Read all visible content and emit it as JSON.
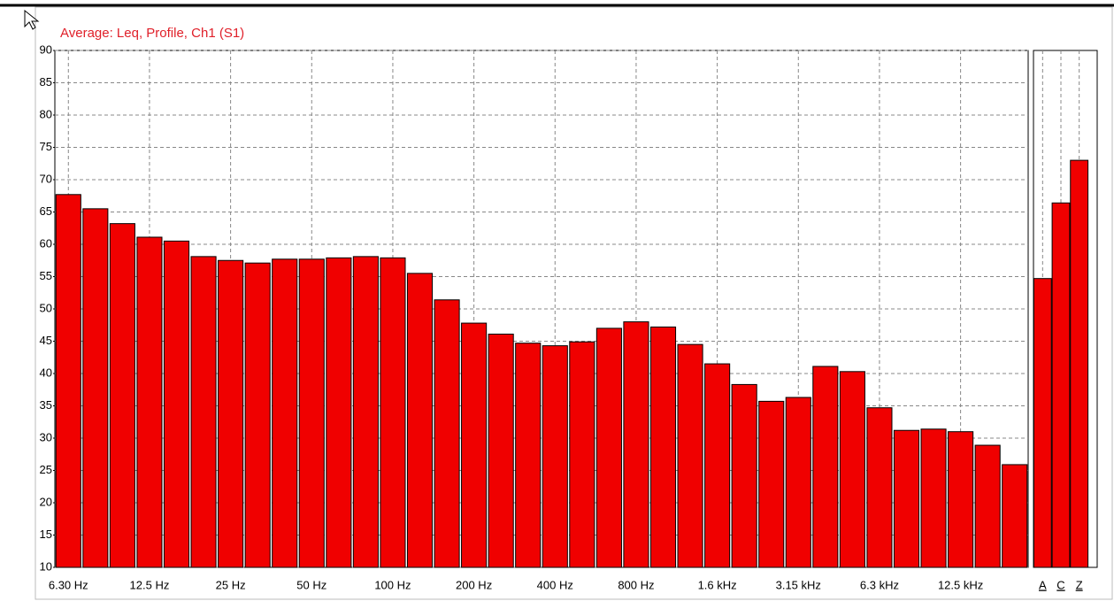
{
  "chart_data": [
    {
      "type": "bar",
      "title": "Average: Leq, Profile, Ch1 (S1)",
      "categories": [
        "6.30 Hz",
        null,
        null,
        "12.5 Hz",
        null,
        null,
        "25 Hz",
        null,
        null,
        "50 Hz",
        null,
        null,
        "100 Hz",
        null,
        null,
        "200 Hz",
        null,
        null,
        "400 Hz",
        null,
        null,
        "800 Hz",
        null,
        null,
        "1.6 kHz",
        null,
        null,
        "3.15 kHz",
        null,
        null,
        "6.3 kHz",
        null,
        null,
        "12.5 kHz",
        null,
        null
      ],
      "values": [
        67.7,
        65.5,
        63.2,
        61.1,
        60.5,
        58.1,
        57.5,
        57.1,
        57.7,
        57.7,
        57.9,
        58.1,
        57.9,
        55.5,
        51.4,
        47.8,
        46.1,
        44.7,
        44.3,
        44.9,
        47.0,
        48.0,
        47.2,
        44.5,
        41.5,
        38.3,
        35.7,
        36.3,
        41.1,
        40.3,
        34.7,
        31.2,
        31.4,
        31.0,
        28.9,
        25.9
      ],
      "color": "#f00000",
      "ylim": [
        10,
        90
      ],
      "yticks": [
        10,
        15,
        20,
        25,
        30,
        35,
        40,
        45,
        50,
        55,
        60,
        65,
        70,
        75,
        80,
        85,
        90
      ],
      "grid": true
    },
    {
      "type": "bar",
      "categories": [
        "A",
        "C",
        "Z"
      ],
      "values": [
        54.7,
        66.4,
        73.0
      ],
      "color": "#f00000",
      "ylim": [
        10,
        90
      ],
      "grid": true
    }
  ]
}
